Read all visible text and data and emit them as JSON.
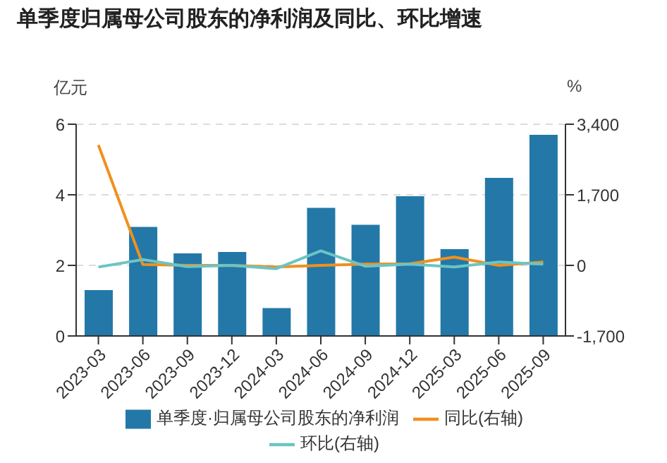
{
  "chart_data": {
    "type": "bar",
    "title": "单季度归属母公司股东的净利润及同比、环比增速",
    "ylabel": "亿元",
    "y2label": "%",
    "categories": [
      "2023-03",
      "2023-06",
      "2023-09",
      "2023-12",
      "2024-03",
      "2024-06",
      "2024-09",
      "2024-12",
      "2025-03",
      "2025-06",
      "2025-09"
    ],
    "series": [
      {
        "name": "单季度·归属母公司股东的净利润",
        "color": "#2378a8",
        "values": [
          1.3,
          3.09,
          2.34,
          2.38,
          0.79,
          3.63,
          3.15,
          3.96,
          2.46,
          4.48,
          5.7
        ]
      },
      {
        "name": "同比(右轴)",
        "type": "line",
        "axis": "y2",
        "color": "#f0901e",
        "values": [
          2900,
          20,
          0,
          0,
          -40,
          0,
          30,
          40,
          200,
          0,
          80
        ]
      },
      {
        "name": "环比(右轴)",
        "type": "line",
        "axis": "y2",
        "color": "#6cc4c4",
        "values": [
          -40,
          140,
          -30,
          0,
          -80,
          350,
          -20,
          30,
          -40,
          80,
          30
        ]
      }
    ],
    "ylim": [
      0,
      6
    ],
    "yticks": [
      0,
      2,
      4,
      6
    ],
    "y2lim": [
      -1700,
      3400
    ],
    "y2ticks": [
      {
        "value": -1700,
        "label": "-1,700"
      },
      {
        "value": 0,
        "label": "0"
      },
      {
        "value": 1700,
        "label": "1,700"
      },
      {
        "value": 3400,
        "label": "3,400"
      }
    ],
    "grid": "y",
    "legend": "bottom",
    "marker": "none",
    "line_style": "solid"
  }
}
